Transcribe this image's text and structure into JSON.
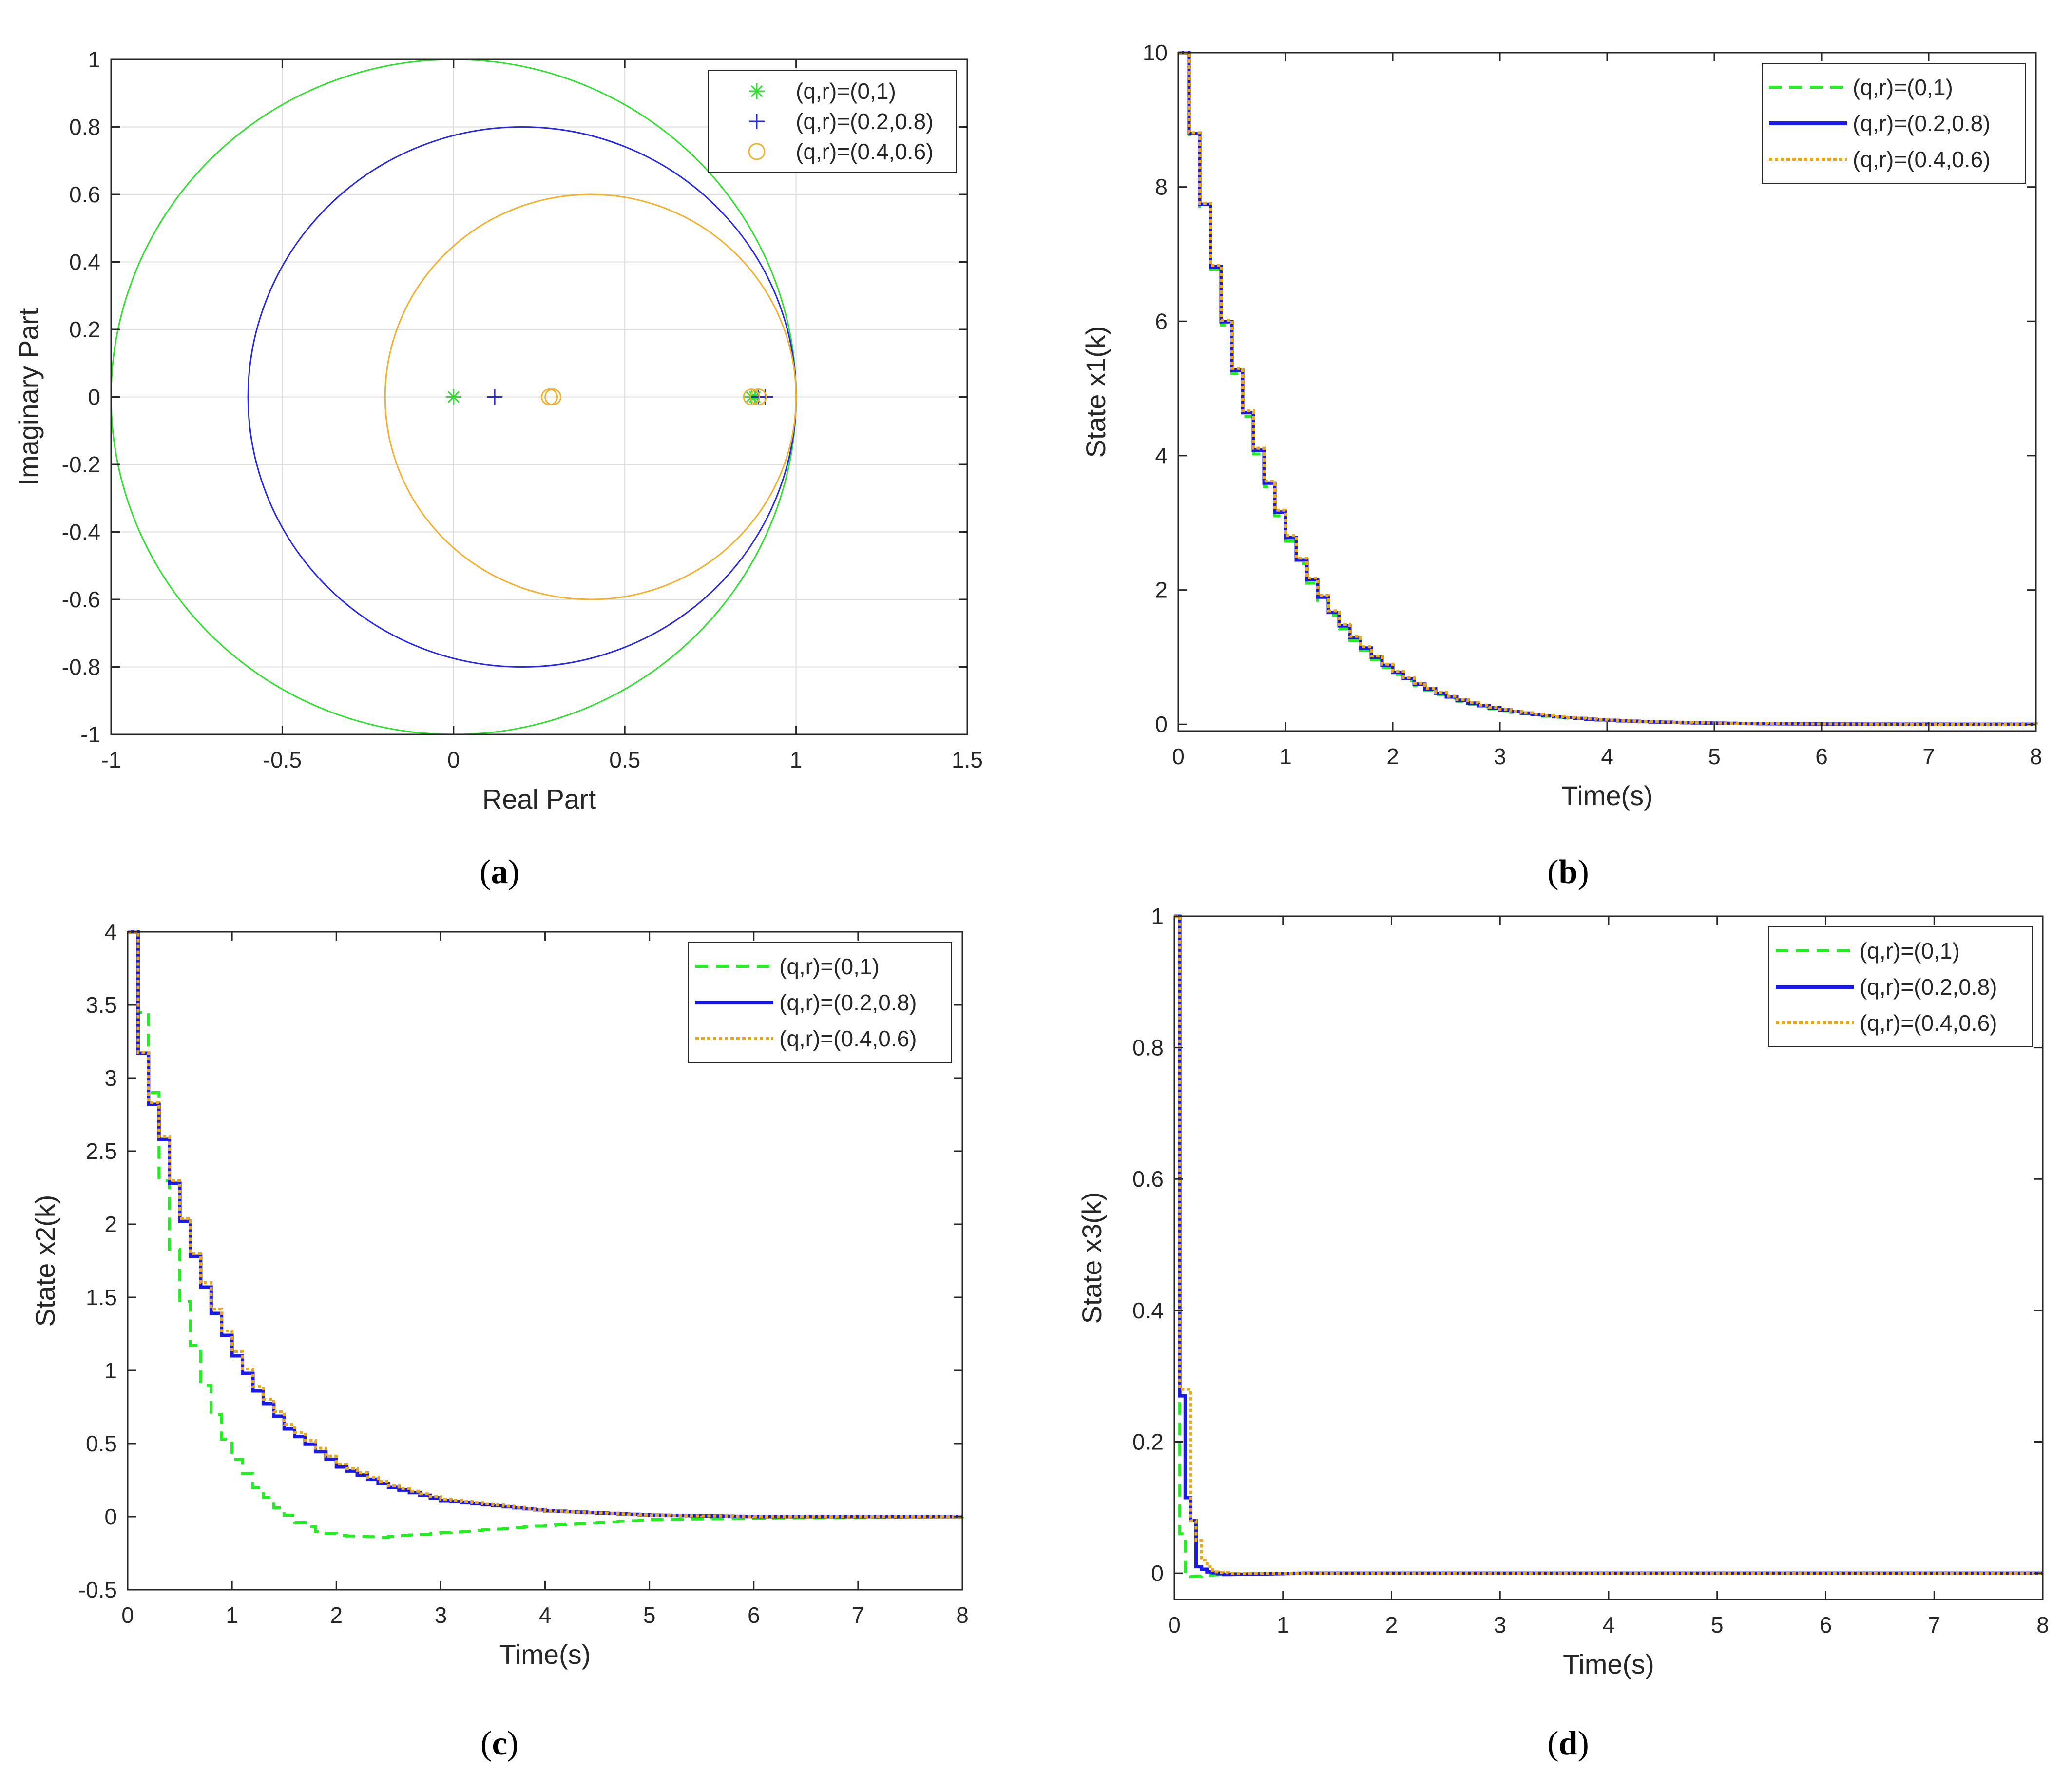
{
  "chart_data": [
    {
      "id": "a",
      "type": "scatter",
      "panel_label": "a",
      "xlabel": "Real Part",
      "ylabel": "Imaginary Part",
      "xlim": [
        -1,
        1.5
      ],
      "ylim": [
        -1,
        1
      ],
      "xticks": [
        -1,
        -0.5,
        0,
        0.5,
        1,
        1.5
      ],
      "yticks": [
        -1,
        -0.8,
        -0.6,
        -0.4,
        -0.2,
        0,
        0.2,
        0.4,
        0.6,
        0.8,
        1
      ],
      "grid": true,
      "legend_position": "top-right",
      "circles": [
        {
          "name": "(q,r)=(0,1)",
          "center": [
            0,
            0
          ],
          "radius": 1,
          "color": "#33dd33"
        },
        {
          "name": "(q,r)=(0.2,0.8)",
          "center": [
            0.2,
            0
          ],
          "radius": 0.8,
          "color": "#2828e0"
        },
        {
          "name": "(q,r)=(0.4,0.6)",
          "center": [
            0.4,
            0
          ],
          "radius": 0.6,
          "color": "#f0b030"
        }
      ],
      "series": [
        {
          "name": "(q,r)=(0,1)",
          "marker": "asterisk",
          "color": "#33dd33",
          "points": [
            [
              0,
              0
            ],
            [
              0.87,
              0
            ],
            [
              0.88,
              0
            ]
          ]
        },
        {
          "name": "(q,r)=(0.2,0.8)",
          "marker": "plus",
          "color": "#2828e0",
          "points": [
            [
              0.12,
              0
            ],
            [
              0.89,
              0
            ],
            [
              0.91,
              0
            ]
          ]
        },
        {
          "name": "(q,r)=(0.4,0.6)",
          "marker": "circle",
          "color": "#f0b030",
          "points": [
            [
              0.28,
              0
            ],
            [
              0.29,
              0
            ],
            [
              0.87,
              0
            ],
            [
              0.89,
              0
            ]
          ]
        }
      ]
    },
    {
      "id": "b",
      "type": "line",
      "panel_label": "b",
      "xlabel": "Time(s)",
      "ylabel": "State x1(k)",
      "xlim": [
        0,
        8
      ],
      "ylim": [
        -0.1,
        10
      ],
      "xticks": [
        0,
        1,
        2,
        3,
        4,
        5,
        6,
        7,
        8
      ],
      "yticks": [
        0,
        2,
        4,
        6,
        8,
        10
      ],
      "grid": false,
      "legend_position": "top-right",
      "series": [
        {
          "name": "(q,r)=(0,1)",
          "style": "dashed",
          "color": "#22ee22",
          "model": {
            "kind": "exp",
            "y0": 10,
            "rate": 1.3,
            "step": 0.1
          }
        },
        {
          "name": "(q,r)=(0.2,0.8)",
          "style": "solid",
          "color": "#1a1ae6",
          "model": {
            "kind": "exp",
            "y0": 10,
            "rate": 1.28,
            "step": 0.1
          }
        },
        {
          "name": "(q,r)=(0.4,0.6)",
          "style": "dotted",
          "color": "#e8a820",
          "model": {
            "kind": "exp",
            "y0": 10,
            "rate": 1.27,
            "step": 0.1
          }
        }
      ]
    },
    {
      "id": "c",
      "type": "line",
      "panel_label": "c",
      "xlabel": "Time(s)",
      "ylabel": "State x2(k)",
      "xlim": [
        0,
        8
      ],
      "ylim": [
        -0.5,
        4
      ],
      "xticks": [
        0,
        1,
        2,
        3,
        4,
        5,
        6,
        7,
        8
      ],
      "yticks": [
        -0.5,
        0,
        0.5,
        1,
        1.5,
        2,
        2.5,
        3,
        3.5,
        4
      ],
      "grid": false,
      "legend_position": "top-right",
      "series": [
        {
          "name": "(q,r)=(0,1)",
          "style": "dashed",
          "color": "#22ee22",
          "model": {
            "kind": "points",
            "step": 0.1,
            "points": [
              [
                0,
                4
              ],
              [
                0.1,
                3.45
              ],
              [
                0.2,
                2.9
              ],
              [
                0.3,
                2.3
              ],
              [
                0.4,
                1.83
              ],
              [
                0.5,
                1.47
              ],
              [
                0.6,
                1.17
              ],
              [
                0.7,
                0.9
              ],
              [
                0.8,
                0.7
              ],
              [
                0.9,
                0.53
              ],
              [
                1.0,
                0.39
              ],
              [
                1.2,
                0.2
              ],
              [
                1.4,
                0.06
              ],
              [
                1.6,
                -0.04
              ],
              [
                1.8,
                -0.1
              ],
              [
                2.0,
                -0.13
              ],
              [
                2.4,
                -0.14
              ],
              [
                3.0,
                -0.11
              ],
              [
                4.0,
                -0.06
              ],
              [
                5.0,
                -0.02
              ],
              [
                6.0,
                -0.01
              ],
              [
                8.0,
                0
              ]
            ]
          }
        },
        {
          "name": "(q,r)=(0.2,0.8)",
          "style": "solid",
          "color": "#1a1ae6",
          "model": {
            "kind": "points",
            "step": 0.1,
            "points": [
              [
                0,
                4
              ],
              [
                0.05,
                3.4
              ],
              [
                0.15,
                2.94
              ],
              [
                0.3,
                2.58
              ],
              [
                0.4,
                2.28
              ],
              [
                0.5,
                2.02
              ],
              [
                0.6,
                1.78
              ],
              [
                0.7,
                1.57
              ],
              [
                0.8,
                1.39
              ],
              [
                0.9,
                1.24
              ],
              [
                1.0,
                1.1
              ],
              [
                1.2,
                0.86
              ],
              [
                1.5,
                0.6
              ],
              [
                2.0,
                0.34
              ],
              [
                2.5,
                0.2
              ],
              [
                3.0,
                0.11
              ],
              [
                4.0,
                0.04
              ],
              [
                5.0,
                0.01
              ],
              [
                6.0,
                0
              ],
              [
                8.0,
                0
              ]
            ]
          }
        },
        {
          "name": "(q,r)=(0.4,0.6)",
          "style": "dotted",
          "color": "#e8a820",
          "model": {
            "kind": "points",
            "step": 0.1,
            "points": [
              [
                0,
                4
              ],
              [
                0.05,
                3.4
              ],
              [
                0.15,
                2.95
              ],
              [
                0.3,
                2.6
              ],
              [
                0.4,
                2.3
              ],
              [
                0.5,
                2.04
              ],
              [
                0.6,
                1.8
              ],
              [
                0.7,
                1.6
              ],
              [
                0.8,
                1.42
              ],
              [
                0.9,
                1.27
              ],
              [
                1.0,
                1.13
              ],
              [
                1.2,
                0.89
              ],
              [
                1.5,
                0.63
              ],
              [
                2.0,
                0.36
              ],
              [
                2.5,
                0.21
              ],
              [
                3.0,
                0.12
              ],
              [
                4.0,
                0.04
              ],
              [
                5.0,
                0.01
              ],
              [
                6.0,
                0
              ],
              [
                8.0,
                0
              ]
            ]
          }
        }
      ]
    },
    {
      "id": "d",
      "type": "line",
      "panel_label": "d",
      "xlabel": "Time(s)",
      "ylabel": "State x3(k)",
      "xlim": [
        0,
        8
      ],
      "ylim": [
        -0.04,
        1
      ],
      "xticks": [
        0,
        1,
        2,
        3,
        4,
        5,
        6,
        7,
        8
      ],
      "yticks": [
        0,
        0.2,
        0.4,
        0.6,
        0.8,
        1
      ],
      "grid": false,
      "legend_position": "top-right",
      "series": [
        {
          "name": "(q,r)=(0,1)",
          "style": "dashed",
          "color": "#22ee22",
          "model": {
            "kind": "points",
            "step": 0.05,
            "points": [
              [
                0,
                1
              ],
              [
                0.05,
                0.06
              ],
              [
                0.1,
                0.0
              ],
              [
                0.15,
                -0.005
              ],
              [
                0.3,
                -0.003
              ],
              [
                0.6,
                0
              ],
              [
                8.0,
                0
              ]
            ]
          }
        },
        {
          "name": "(q,r)=(0.2,0.8)",
          "style": "solid",
          "color": "#1a1ae6",
          "model": {
            "kind": "points",
            "step": 0.05,
            "points": [
              [
                0,
                1
              ],
              [
                0.05,
                0.27
              ],
              [
                0.1,
                0.115
              ],
              [
                0.15,
                0.08
              ],
              [
                0.2,
                0.01
              ],
              [
                0.3,
                0.002
              ],
              [
                0.45,
                -0.002
              ],
              [
                1.2,
                0
              ],
              [
                8.0,
                0
              ]
            ]
          }
        },
        {
          "name": "(q,r)=(0.4,0.6)",
          "style": "dotted",
          "color": "#e8a820",
          "model": {
            "kind": "points",
            "step": 0.05,
            "points": [
              [
                0,
                1
              ],
              [
                0.05,
                0.28
              ],
              [
                0.1,
                0.28
              ],
              [
                0.15,
                0.08
              ],
              [
                0.2,
                0.05
              ],
              [
                0.25,
                0.02
              ],
              [
                0.3,
                0.01
              ],
              [
                0.35,
                0.002
              ],
              [
                0.5,
                0
              ],
              [
                8.0,
                0
              ]
            ]
          }
        }
      ]
    }
  ]
}
